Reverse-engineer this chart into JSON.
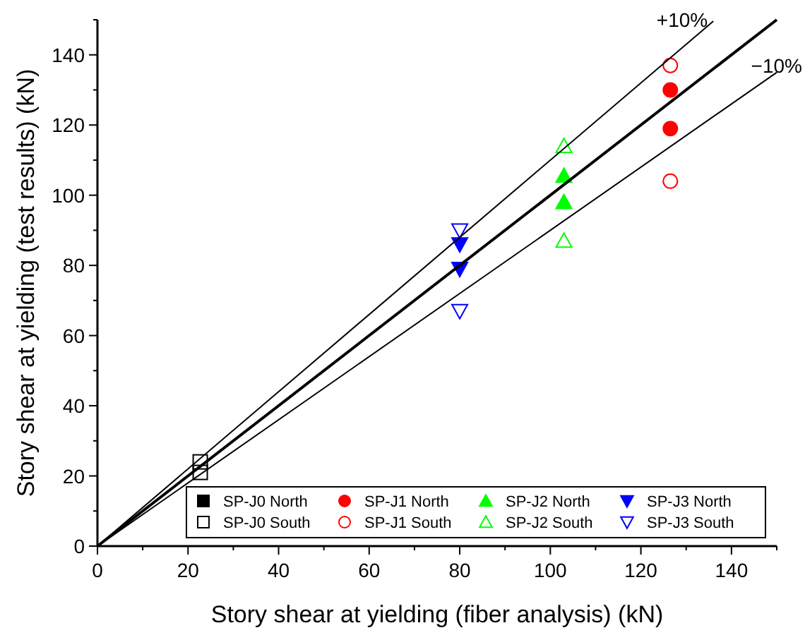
{
  "chart_data": {
    "type": "scatter",
    "xlabel": "Story shear at yielding (fiber analysis) (kN)",
    "ylabel": "Story shear at yielding (test results) (kN)",
    "xlim": [
      0,
      150
    ],
    "ylim": [
      0,
      150
    ],
    "xticks": [
      0,
      {
        "value": 10,
        "label": null
      },
      20,
      {
        "value": 30,
        "label": null
      },
      40,
      {
        "value": 50,
        "label": null
      },
      60,
      {
        "value": 70,
        "label": null
      },
      80,
      {
        "value": 90,
        "label": null
      },
      100,
      {
        "value": 110,
        "label": null
      },
      120,
      {
        "value": 130,
        "label": null
      },
      140,
      {
        "value": 150,
        "label": null
      }
    ],
    "yticks": [
      0,
      {
        "value": 10,
        "label": null
      },
      20,
      {
        "value": 30,
        "label": null
      },
      40,
      {
        "value": 50,
        "label": null
      },
      60,
      {
        "value": 70,
        "label": null
      },
      80,
      {
        "value": 90,
        "label": null
      },
      100,
      {
        "value": 110,
        "label": null
      },
      120,
      {
        "value": 130,
        "label": null
      },
      140,
      {
        "value": 150,
        "label": null
      }
    ],
    "grid": false,
    "legend": "bottom right",
    "series": [
      {
        "name": "SP-J0 North",
        "color": "#000000",
        "marker": "square"
      },
      {
        "name": "SP-J0 South",
        "color": "#000000",
        "marker": "square-open",
        "x": [
          22.7,
          22.7
        ],
        "values": [
          24,
          21
        ]
      },
      {
        "name": "SP-J1 North",
        "color": "#ff0000",
        "marker": "circle",
        "x": [
          126.5,
          126.5
        ],
        "values": [
          130,
          119
        ]
      },
      {
        "name": "SP-J1 South",
        "color": "#ff0000",
        "marker": "circle-open",
        "x": [
          126.5,
          126.5
        ],
        "values": [
          137,
          104
        ]
      },
      {
        "name": "SP-J2 North",
        "color": "#00ff00",
        "marker": "triangle",
        "x": [
          103,
          103
        ],
        "values": [
          105.5,
          98
        ]
      },
      {
        "name": "SP-J2 South",
        "color": "#00ff00",
        "marker": "triangle-open",
        "x": [
          103,
          103
        ],
        "values": [
          114,
          87
        ]
      },
      {
        "name": "SP-J3 North",
        "color": "#0000ff",
        "marker": "triangle-down",
        "x": [
          80,
          80
        ],
        "values": [
          86,
          79
        ]
      },
      {
        "name": "SP-J3 South",
        "color": "#0000ff",
        "marker": "triangle-down-open",
        "x": [
          80,
          80
        ],
        "values": [
          90,
          67
        ]
      },
      {
        "type": "line",
        "color": "#000000",
        "x": [
          0,
          150
        ],
        "values": [
          0,
          150
        ]
      },
      {
        "type": "line",
        "color": "#000000",
        "x": [
          0,
          136
        ],
        "values": [
          0,
          149.6
        ]
      },
      {
        "type": "line",
        "color": "#000000",
        "x": [
          0,
          150
        ],
        "values": [
          0,
          135
        ]
      }
    ],
    "annotations": [
      {
        "text": "+10%",
        "x": 136,
        "y": 149.6
      },
      {
        "text": "−10%",
        "x": 150,
        "y": 135
      }
    ]
  }
}
